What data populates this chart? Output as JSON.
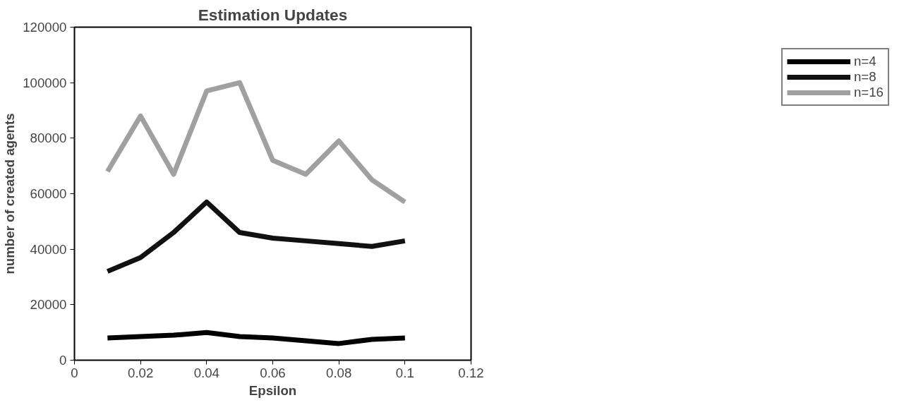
{
  "chart_data": {
    "type": "line",
    "title": "Estimation Updates",
    "xlabel": "Epsilon",
    "ylabel": "number of created agents",
    "x": [
      0.01,
      0.02,
      0.03,
      0.04,
      0.05,
      0.06,
      0.07,
      0.08,
      0.09,
      0.1
    ],
    "series": [
      {
        "name": "n=4",
        "color": "#000000",
        "values": [
          8000,
          8500,
          9000,
          10000,
          8500,
          8000,
          7000,
          6000,
          7500,
          8000
        ]
      },
      {
        "name": "n=8",
        "color": "#111111",
        "values": [
          32000,
          37000,
          46000,
          57000,
          46000,
          44000,
          43000,
          42000,
          41000,
          43000
        ]
      },
      {
        "name": "n=16",
        "color": "#a0a0a0",
        "values": [
          68000,
          88000,
          67000,
          97000,
          100000,
          72000,
          67000,
          79000,
          65000,
          57000
        ]
      }
    ],
    "xlim": [
      0,
      0.12
    ],
    "xticks": [
      0,
      0.02,
      0.04,
      0.06,
      0.08,
      0.1,
      0.12
    ],
    "ylim": [
      0,
      120000
    ],
    "yticks": [
      0,
      20000,
      40000,
      60000,
      80000,
      100000,
      120000
    ],
    "grid": false,
    "legend": "right",
    "marker": "none",
    "line_style": "solid"
  }
}
